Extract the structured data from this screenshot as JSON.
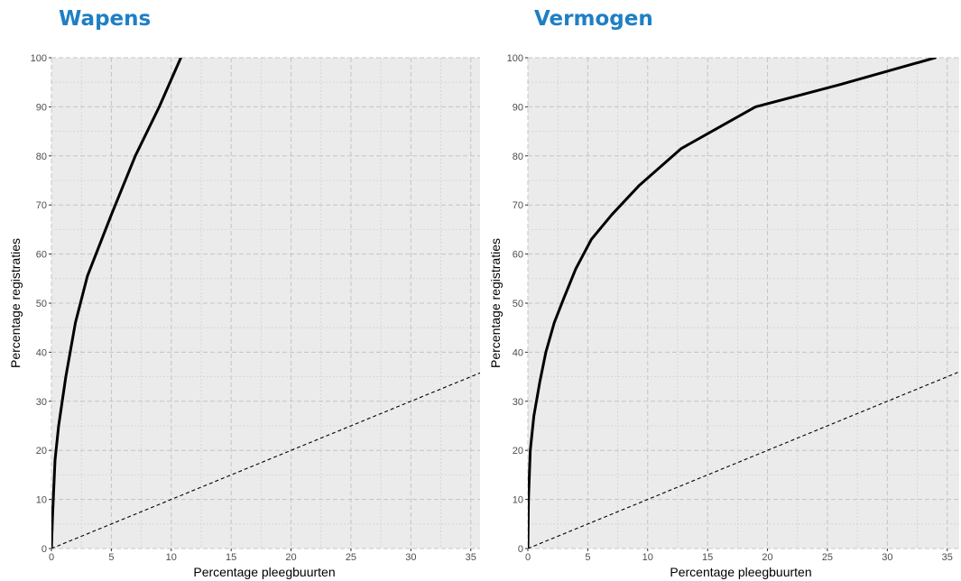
{
  "colors": {
    "title": "#1f7fc4",
    "panel_background": "#ebebeb",
    "grid_major": "#c4c4c4",
    "grid_minor": "#d2d2d2",
    "curve": "#000000",
    "reference_line": "#000000"
  },
  "chart_data": [
    {
      "type": "line",
      "title": "Wapens",
      "xlabel": "Percentage pleegbuurten",
      "ylabel": "Percentage registraties",
      "xlim": [
        0,
        36
      ],
      "ylim": [
        0,
        100
      ],
      "x_ticks": [
        0,
        5,
        10,
        15,
        20,
        25,
        30,
        35
      ],
      "y_ticks": [
        0,
        10,
        20,
        30,
        40,
        50,
        60,
        70,
        80,
        90,
        100
      ],
      "grid": true,
      "grid_style": "dashed",
      "series": [
        {
          "style": "solid",
          "x": [
            0,
            0.1,
            0.3,
            0.6,
            1.2,
            2.0,
            3.0,
            5.0,
            7.0,
            9.0,
            10.8
          ],
          "y": [
            0,
            7,
            18,
            25,
            35,
            46,
            55.5,
            68,
            80,
            90,
            100
          ]
        },
        {
          "style": "dashed",
          "x": [
            0,
            36
          ],
          "y": [
            0,
            36
          ]
        }
      ]
    },
    {
      "type": "line",
      "title": "Vermogen",
      "xlabel": "Percentage pleegbuurten",
      "ylabel": "Percentage registraties",
      "xlim": [
        0,
        36
      ],
      "ylim": [
        0,
        100
      ],
      "x_ticks": [
        0,
        5,
        10,
        15,
        20,
        25,
        30,
        35
      ],
      "y_ticks": [
        0,
        10,
        20,
        30,
        40,
        50,
        60,
        70,
        80,
        90,
        100
      ],
      "grid": true,
      "grid_style": "dashed",
      "series": [
        {
          "style": "solid",
          "x": [
            0,
            0.05,
            0.2,
            0.5,
            1.0,
            1.5,
            2.2,
            3.0,
            4.0,
            5.3,
            7.0,
            9.3,
            12.8,
            19.0,
            26.0,
            34.0
          ],
          "y": [
            0,
            10,
            20,
            27,
            34,
            40,
            46,
            51,
            57,
            63,
            68,
            74,
            81.5,
            90,
            94.5,
            100
          ]
        },
        {
          "style": "dashed",
          "x": [
            0,
            36
          ],
          "y": [
            0,
            36
          ]
        }
      ]
    }
  ]
}
